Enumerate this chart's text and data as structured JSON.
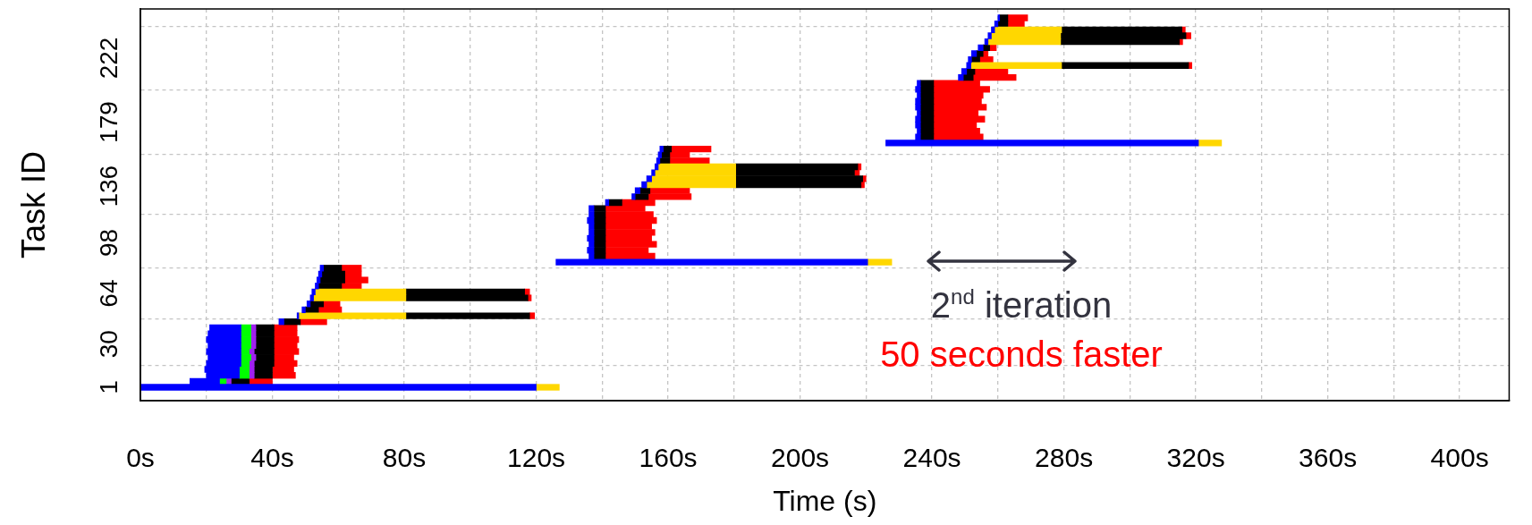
{
  "chart_data": {
    "type": "bar",
    "orientation": "horizontal",
    "xlabel": "Time (s)",
    "ylabel": "Task ID",
    "x": [
      1,
      5,
      9,
      13,
      17,
      21,
      25,
      29,
      33,
      37,
      41,
      45,
      49,
      53,
      57,
      61,
      65,
      69,
      73,
      77,
      81,
      85,
      89,
      93,
      97,
      101,
      105,
      109,
      113,
      117,
      121,
      125,
      129,
      133,
      137,
      141,
      145,
      149,
      153,
      157,
      161,
      165,
      169,
      173,
      177,
      181,
      185,
      189,
      193,
      197,
      201,
      205,
      209,
      213,
      217,
      221,
      225,
      229,
      233,
      237,
      241,
      245,
      249
    ],
    "series": [
      {
        "color": "#0000ff",
        "base": [
          0,
          15,
          20,
          19.5,
          20,
          20.5,
          20,
          20.5,
          20,
          20.5,
          21,
          42,
          47.5,
          49,
          50.5,
          51.5,
          52,
          53,
          53.5,
          54,
          54.5,
          126,
          136,
          135.5,
          136,
          135.5,
          136,
          136,
          135.5,
          136,
          136,
          141,
          149,
          150,
          152,
          153.5,
          155,
          156,
          156.5,
          157,
          157.5,
          226,
          235,
          235.5,
          235,
          235,
          235.5,
          235,
          235,
          235.5,
          235,
          235.5,
          248,
          249,
          250.5,
          251,
          252,
          254,
          256,
          257,
          258,
          259,
          260
        ],
        "values": [
          120,
          9,
          10,
          10.5,
          10.5,
          10,
          10.5,
          10,
          10.5,
          10,
          9.5,
          1.5,
          0.5,
          1,
          1,
          1,
          1,
          1,
          1,
          1,
          1,
          94.5,
          1.5,
          2,
          1.5,
          2,
          1.5,
          1.5,
          2,
          1.5,
          1.5,
          1,
          1,
          1.5,
          1.5,
          1.5,
          1,
          1,
          1,
          1,
          1,
          94.8,
          1.5,
          1,
          1.5,
          1.5,
          1,
          1.5,
          1.5,
          1,
          1.5,
          1,
          1.5,
          1.5,
          1.3,
          1,
          1.5,
          1.5,
          1,
          1,
          1,
          1,
          0.5
        ]
      },
      {
        "color": "#00ff00",
        "base": [
          null,
          24,
          30,
          30,
          30.5,
          30.5,
          30.5,
          30.5,
          30.5,
          30.5,
          30.5,
          null,
          null,
          null,
          null,
          null,
          null,
          null,
          null,
          null,
          null,
          null,
          null,
          null,
          null,
          null,
          null,
          null,
          null,
          null,
          null,
          null,
          null,
          null,
          null,
          null,
          null,
          null,
          null,
          null,
          null,
          null,
          null,
          null,
          null,
          null,
          null,
          null,
          null,
          null,
          null,
          null,
          null,
          null,
          null,
          null,
          null,
          null,
          null,
          null,
          null,
          null,
          null
        ],
        "values": [
          null,
          2,
          3,
          3,
          2.5,
          3,
          2.5,
          3,
          3,
          3,
          3,
          null,
          null,
          null,
          null,
          null,
          null,
          null,
          null,
          null,
          null,
          null,
          null,
          null,
          null,
          null,
          null,
          null,
          null,
          null,
          null,
          null,
          null,
          null,
          null,
          null,
          null,
          null,
          null,
          null,
          null,
          null,
          null,
          null,
          null,
          null,
          null,
          null,
          null,
          null,
          null,
          null,
          null,
          null,
          null,
          null,
          null,
          null,
          null,
          null,
          null,
          null,
          null
        ]
      },
      {
        "color": "#a020f0",
        "base": [
          null,
          26,
          33,
          33,
          33,
          33.5,
          33,
          33.5,
          33.5,
          33.5,
          33.5,
          null,
          null,
          null,
          null,
          null,
          null,
          null,
          null,
          null,
          null,
          null,
          null,
          null,
          null,
          null,
          null,
          null,
          null,
          null,
          null,
          null,
          null,
          null,
          null,
          null,
          null,
          null,
          null,
          null,
          null,
          null,
          null,
          null,
          null,
          null,
          null,
          null,
          null,
          null,
          null,
          null,
          null,
          null,
          null,
          null,
          null,
          null,
          null,
          null,
          null,
          null,
          null
        ],
        "values": [
          null,
          1.5,
          1.5,
          1.5,
          1.5,
          1.5,
          1.5,
          1.5,
          1.5,
          1.5,
          1.5,
          null,
          null,
          null,
          null,
          null,
          null,
          null,
          null,
          null,
          null,
          null,
          null,
          null,
          null,
          null,
          null,
          null,
          null,
          null,
          null,
          null,
          null,
          null,
          null,
          null,
          null,
          null,
          null,
          null,
          null,
          null,
          null,
          null,
          null,
          null,
          null,
          null,
          null,
          null,
          null,
          null,
          null,
          null,
          null,
          null,
          null,
          null,
          null,
          null,
          null,
          null,
          null
        ]
      },
      {
        "color": "#ffd700",
        "base": [
          120,
          null,
          null,
          null,
          null,
          null,
          null,
          null,
          null,
          null,
          null,
          null,
          48,
          null,
          null,
          52.5,
          53,
          null,
          null,
          null,
          null,
          220.5,
          null,
          null,
          null,
          null,
          null,
          null,
          null,
          null,
          null,
          null,
          null,
          null,
          153.5,
          155,
          156,
          157,
          null,
          null,
          null,
          320.8,
          null,
          null,
          null,
          null,
          null,
          null,
          null,
          null,
          null,
          null,
          null,
          null,
          251.8,
          null,
          null,
          null,
          257,
          258,
          259,
          null,
          null
        ],
        "values": [
          7,
          null,
          null,
          null,
          null,
          null,
          null,
          null,
          null,
          null,
          null,
          null,
          32.5,
          null,
          null,
          28,
          27.5,
          null,
          null,
          null,
          null,
          7.3,
          null,
          null,
          null,
          null,
          null,
          null,
          null,
          null,
          null,
          null,
          null,
          null,
          27,
          25.5,
          24.5,
          23.5,
          null,
          null,
          null,
          7,
          null,
          null,
          null,
          null,
          null,
          null,
          null,
          null,
          null,
          null,
          null,
          null,
          27.5,
          null,
          null,
          null,
          22,
          21,
          20.3,
          null,
          null
        ]
      },
      {
        "color": "#000000",
        "base": [
          null,
          27.5,
          34.5,
          34.5,
          34.5,
          35,
          34.5,
          35,
          35,
          35,
          35,
          43.5,
          80.5,
          50,
          51.5,
          80.5,
          80.5,
          54,
          54.5,
          55,
          55.5,
          null,
          137.5,
          137.5,
          137.5,
          137.5,
          137.5,
          137.5,
          137.5,
          137.5,
          137.5,
          142,
          150,
          151.5,
          180.5,
          180.5,
          180.5,
          180.5,
          157.5,
          158,
          158.5,
          null,
          236.5,
          236.5,
          236.5,
          236.5,
          236.5,
          236.5,
          236.5,
          236.5,
          236.5,
          236.5,
          249.5,
          250.5,
          279.3,
          252,
          253.5,
          255.5,
          279,
          279,
          279.3,
          260,
          260.5
        ],
        "values": [
          null,
          5.5,
          5.5,
          5.5,
          6,
          5.5,
          6,
          5.5,
          5.5,
          5.5,
          5.5,
          5,
          37.5,
          4,
          4,
          37,
          36,
          7,
          7.5,
          7,
          5.5,
          null,
          3.5,
          3.5,
          3.5,
          3.5,
          3.5,
          3.5,
          3.5,
          3.5,
          3.5,
          4,
          4,
          3,
          38,
          38.5,
          36,
          37,
          3,
          2.5,
          2.5,
          null,
          4,
          4,
          4,
          4,
          4,
          4,
          4,
          4,
          4,
          4,
          3,
          2.5,
          38.5,
          2.5,
          2,
          2,
          36,
          38,
          36.5,
          3,
          2.5
        ]
      },
      {
        "color": "#ff0000",
        "base": [
          null,
          33,
          40,
          40,
          40.5,
          40.5,
          40.5,
          40.5,
          40.5,
          40.5,
          40.5,
          48.5,
          118,
          54,
          55.5,
          117.5,
          116.5,
          61,
          62,
          62,
          61,
          null,
          141,
          141,
          141,
          141,
          141,
          141,
          141,
          141,
          141,
          146,
          154,
          154.5,
          218.5,
          219,
          216.5,
          217.5,
          160.5,
          160.5,
          161,
          null,
          240.5,
          240.5,
          240.5,
          240.5,
          240.5,
          240.5,
          240.5,
          240.5,
          240.5,
          240.5,
          252.5,
          253,
          317.8,
          254.5,
          255.5,
          257.5,
          315,
          317,
          315.8,
          263,
          263
        ],
        "values": [
          null,
          7,
          7,
          6.5,
          7,
          6,
          7.5,
          7,
          7.5,
          7,
          7,
          8,
          1.5,
          7,
          5,
          1,
          1.5,
          6,
          7,
          5,
          6,
          null,
          15,
          13,
          15.5,
          14,
          15,
          14,
          15.5,
          14.5,
          12,
          10,
          13,
          12,
          1,
          1,
          1.5,
          1,
          12,
          6,
          12,
          null,
          15,
          14,
          13,
          15.5,
          13.5,
          16,
          14.5,
          15,
          17,
          14,
          13,
          10,
          1,
          4,
          1.5,
          2,
          1,
          1.5,
          1,
          5,
          6
        ]
      }
    ],
    "xlim": [
      0,
      415
    ],
    "xticks": [
      {
        "value": 0,
        "label": "0s"
      },
      {
        "value": 20,
        "label": null
      },
      {
        "value": 40,
        "label": "40s"
      },
      {
        "value": 60,
        "label": null
      },
      {
        "value": 80,
        "label": "80s"
      },
      {
        "value": 100,
        "label": null
      },
      {
        "value": 120,
        "label": "120s"
      },
      {
        "value": 140,
        "label": null
      },
      {
        "value": 160,
        "label": "160s"
      },
      {
        "value": 180,
        "label": null
      },
      {
        "value": 200,
        "label": "200s"
      },
      {
        "value": 220,
        "label": null
      },
      {
        "value": 240,
        "label": "240s"
      },
      {
        "value": 260,
        "label": null
      },
      {
        "value": 280,
        "label": "280s"
      },
      {
        "value": 300,
        "label": null
      },
      {
        "value": 320,
        "label": "320s"
      },
      {
        "value": 340,
        "label": null
      },
      {
        "value": 360,
        "label": "360s"
      },
      {
        "value": 380,
        "label": null
      },
      {
        "value": 400,
        "label": "400s"
      }
    ],
    "ylim": [
      -8,
      255
    ],
    "yticks": [
      1,
      30,
      64,
      98,
      136,
      179,
      222
    ],
    "grid": true,
    "annotations": [
      "2$^{nd}$ iteration",
      "50 seconds faster"
    ]
  }
}
